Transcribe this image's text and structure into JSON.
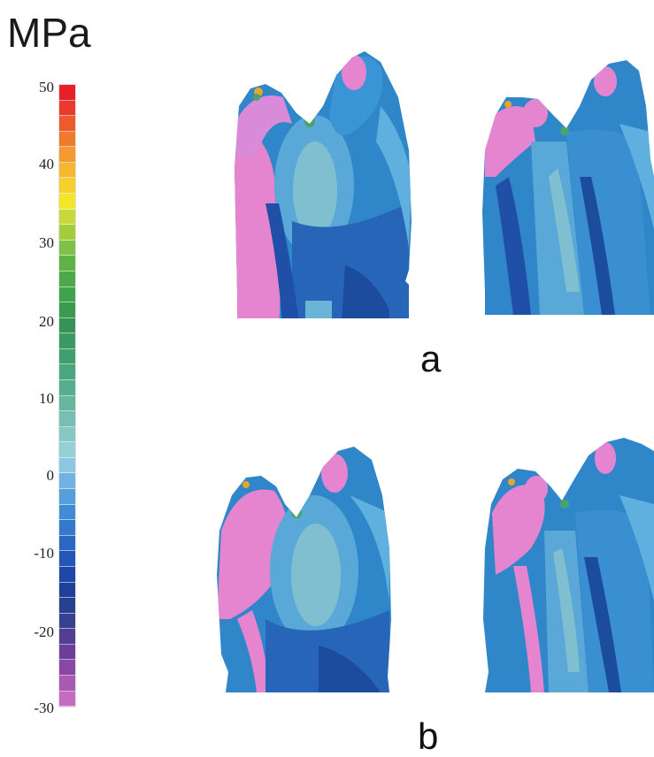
{
  "unit_label": "MPa",
  "scale": {
    "ticks": [
      "50",
      "40",
      "30",
      "20",
      "10",
      "0",
      "-10",
      "-20",
      "-30"
    ],
    "colors": [
      "#e8202b",
      "#ea3a2e",
      "#ee5a2c",
      "#f07a2b",
      "#f59a30",
      "#f7b62f",
      "#f8d02c",
      "#f3e52a",
      "#c8d93a",
      "#a4cd3e",
      "#80c045",
      "#5fb246",
      "#4caa4a",
      "#3fa24d",
      "#3a9a52",
      "#369358",
      "#3a9a62",
      "#3f9f6e",
      "#49a67e",
      "#57ae8e",
      "#66b6a0",
      "#76bfb2",
      "#86c8c4",
      "#95d0d6",
      "#8ec7e3",
      "#6fb3e2",
      "#559fdc",
      "#418cd6",
      "#3479cd",
      "#2a67c3",
      "#2356b7",
      "#1f47a8",
      "#203f98",
      "#28418f",
      "#384190",
      "#523f93",
      "#6b3f99",
      "#8a48a4",
      "#a95ab1",
      "#c46cbf"
    ]
  },
  "panels": [
    {
      "label": "a"
    },
    {
      "label": "b"
    }
  ]
}
